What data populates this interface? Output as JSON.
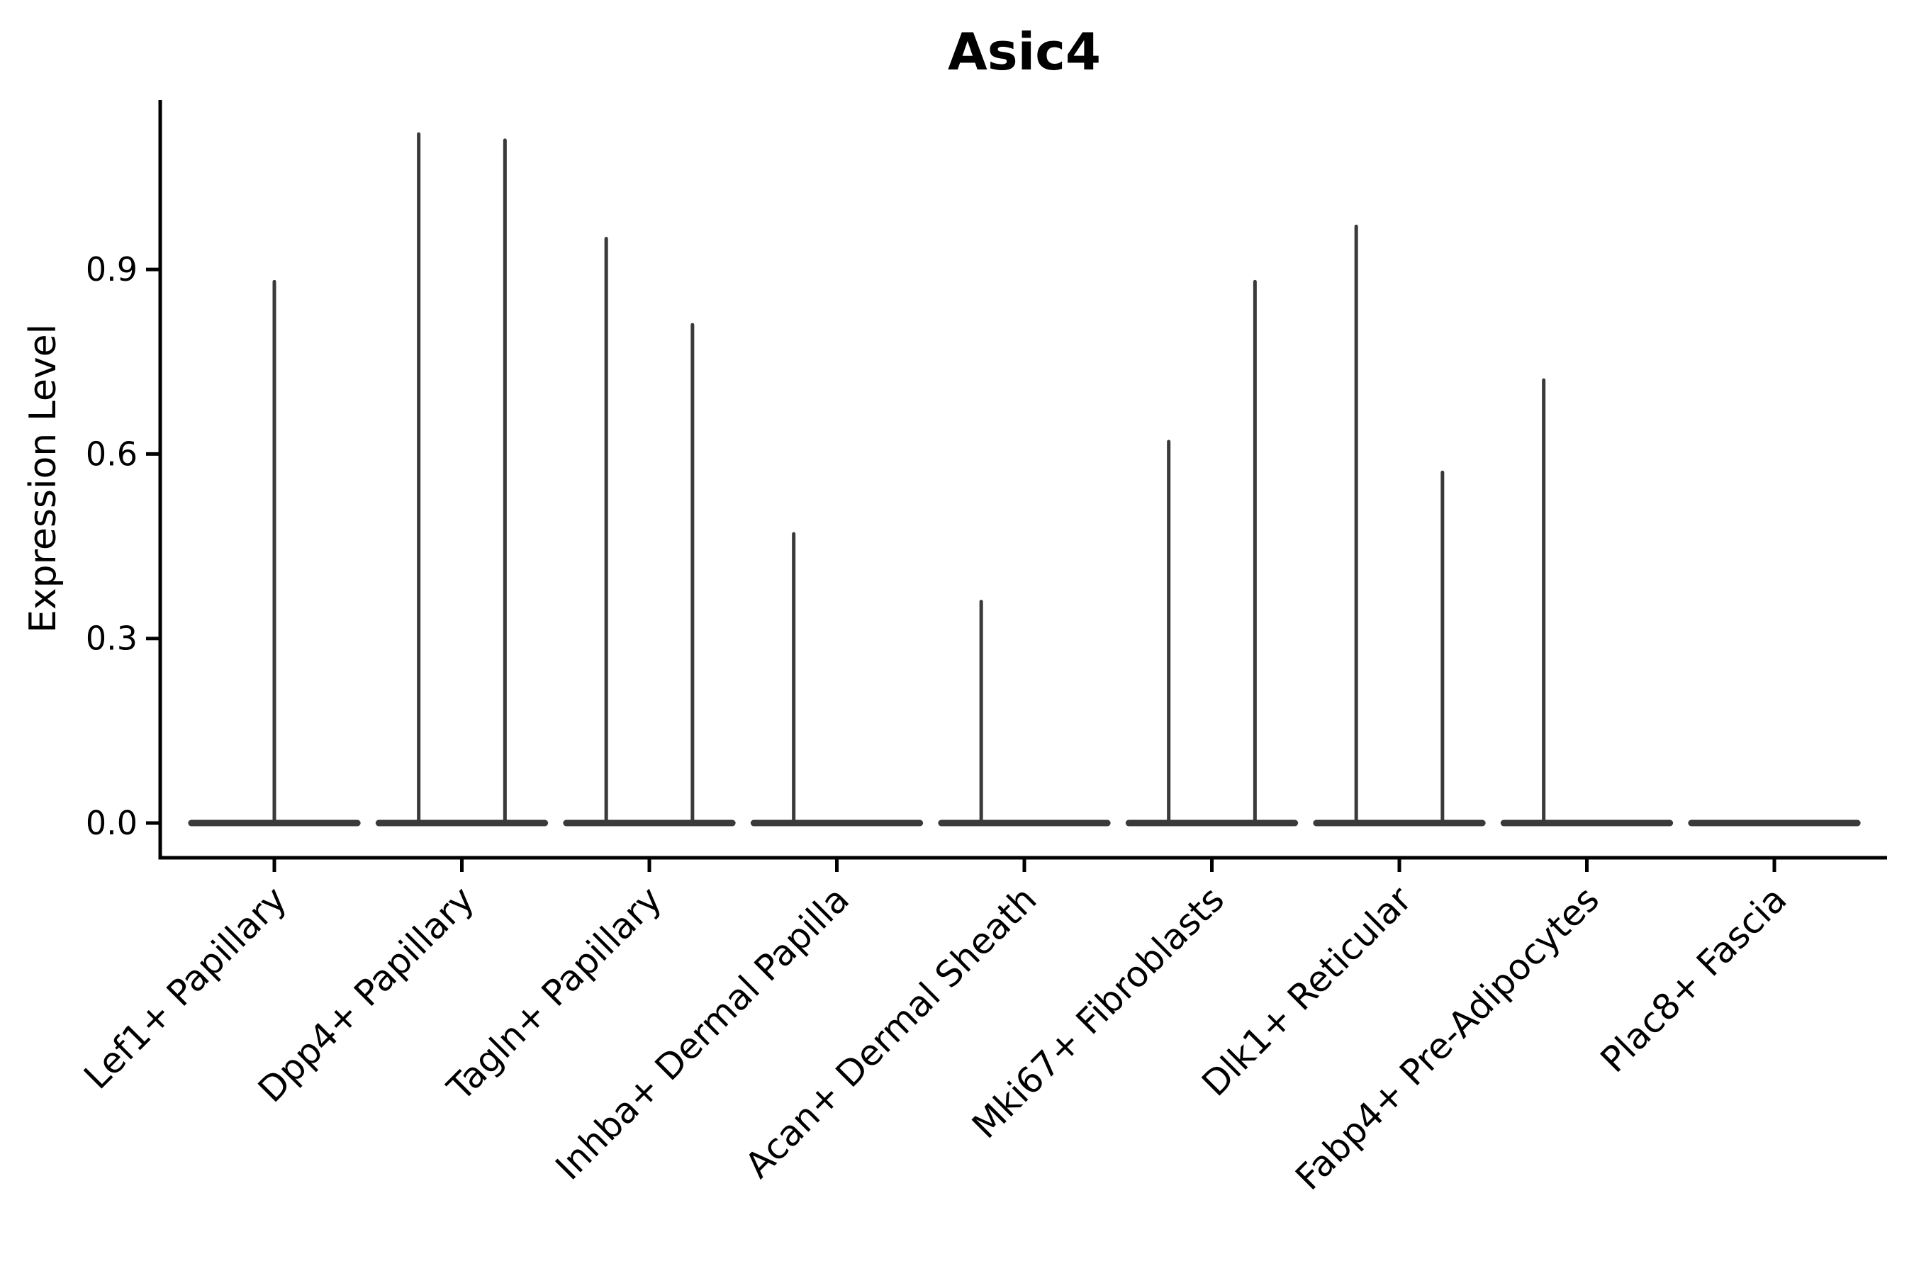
{
  "chart_data": {
    "type": "violin",
    "title": "Asic4",
    "ylabel": "Expression Level",
    "xlabel": "",
    "yticks": [
      {
        "label": "0.0",
        "value": 0.0
      },
      {
        "label": "0.3",
        "value": 0.3
      },
      {
        "label": "0.6",
        "value": 0.6
      },
      {
        "label": "0.9",
        "value": 0.9
      }
    ],
    "ylim": [
      0,
      1.176
    ],
    "grid": false,
    "legend_position": "none",
    "x_tick_label_rotation_deg": 45,
    "violin_color": "#3a3a3a",
    "axis_color": "#000000",
    "categories": [
      "Lef1+ Papillary",
      "Dpp4+ Papillary",
      "Tagln+ Papillary",
      "Inhba+ Dermal Papilla",
      "Acan+ Dermal Sheath",
      "Mki67+ Fibroblasts",
      "Dlk1+ Reticular",
      "Fabp4+ Pre-Adipocytes",
      "Plac8+ Fascia"
    ],
    "violins": [
      {
        "category": "Lef1+ Papillary",
        "baseline": 0.0,
        "spikes": [
          {
            "x_offset_frac": 0.0,
            "peak": 0.88
          }
        ]
      },
      {
        "category": "Dpp4+ Papillary",
        "baseline": 0.0,
        "spikes": [
          {
            "x_offset_frac": -0.23,
            "peak": 1.12
          },
          {
            "x_offset_frac": 0.23,
            "peak": 1.11
          }
        ]
      },
      {
        "category": "Tagln+ Papillary",
        "baseline": 0.0,
        "spikes": [
          {
            "x_offset_frac": -0.23,
            "peak": 0.95
          },
          {
            "x_offset_frac": 0.23,
            "peak": 0.81
          }
        ]
      },
      {
        "category": "Inhba+ Dermal Papilla",
        "baseline": 0.0,
        "spikes": [
          {
            "x_offset_frac": -0.23,
            "peak": 0.47
          }
        ]
      },
      {
        "category": "Acan+ Dermal Sheath",
        "baseline": 0.0,
        "spikes": [
          {
            "x_offset_frac": -0.23,
            "peak": 0.36
          }
        ]
      },
      {
        "category": "Mki67+ Fibroblasts",
        "baseline": 0.0,
        "spikes": [
          {
            "x_offset_frac": -0.23,
            "peak": 0.62
          },
          {
            "x_offset_frac": 0.23,
            "peak": 0.88
          }
        ]
      },
      {
        "category": "Dlk1+ Reticular",
        "baseline": 0.0,
        "spikes": [
          {
            "x_offset_frac": -0.23,
            "peak": 0.97
          },
          {
            "x_offset_frac": 0.23,
            "peak": 0.57
          }
        ]
      },
      {
        "category": "Fabp4+ Pre-Adipocytes",
        "baseline": 0.0,
        "spikes": [
          {
            "x_offset_frac": -0.23,
            "peak": 0.72
          }
        ]
      },
      {
        "category": "Plac8+ Fascia",
        "baseline": 0.0,
        "spikes": []
      }
    ]
  }
}
